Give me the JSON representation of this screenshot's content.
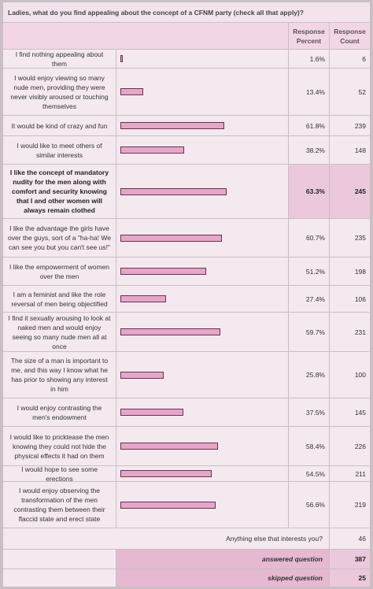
{
  "title": "Ladies, what do you find appealing about the concept of a CFNM party (check all that apply)?",
  "headers": [
    "Response Percent",
    "Response Count"
  ],
  "rows": [
    {
      "label": "I find nothing appealing about them",
      "percent": 1.6,
      "percent_label": "1.6%",
      "count": 6
    },
    {
      "label": "I would enjoy viewing so many nude men, providing they were never visibly aroused or touching themselves",
      "percent": 13.4,
      "percent_label": "13.4%",
      "count": 52
    },
    {
      "label": "It would be kind of crazy and fun",
      "percent": 61.8,
      "percent_label": "61.8%",
      "count": 239
    },
    {
      "label": "I would like to meet others of similar interests",
      "percent": 38.2,
      "percent_label": "38.2%",
      "count": 148
    },
    {
      "label": "I like the concept of mandatory nudity for the men along with comfort and security knowing that I and other women will always remain clothed",
      "percent": 63.3,
      "percent_label": "63.3%",
      "count": 245,
      "highlight": true
    },
    {
      "label": "I like the advantage the girls have over the guys, sort of a \"ha-ha! We can see you but you can't see us!\"",
      "percent": 60.7,
      "percent_label": "60.7%",
      "count": 235
    },
    {
      "label": "I like the empowerment of women over the men",
      "percent": 51.2,
      "percent_label": "51.2%",
      "count": 198
    },
    {
      "label": "I am a feminist and like the role reversal of men being objectified",
      "percent": 27.4,
      "percent_label": "27.4%",
      "count": 106
    },
    {
      "label": "I find it sexually arousing to look at naked men and would enjoy seeing so many nude men all at once",
      "percent": 59.7,
      "percent_label": "59.7%",
      "count": 231
    },
    {
      "label": "The size of a man is important to me, and this way I know what he has prior to showing any interest in him",
      "percent": 25.8,
      "percent_label": "25.8%",
      "count": 100
    },
    {
      "label": "I would enjoy contrasting the men's endowment",
      "percent": 37.5,
      "percent_label": "37.5%",
      "count": 145
    },
    {
      "label": "I would like to pricktease the men knowing they could not hide the physical effects it had on them",
      "percent": 58.4,
      "percent_label": "58.4%",
      "count": 226
    },
    {
      "label": "I would hope to see some erections",
      "percent": 54.5,
      "percent_label": "54.5%",
      "count": 211
    },
    {
      "label": "I would enjoy observing the transformation of the men contrasting them between their flaccid state and erect state",
      "percent": 56.6,
      "percent_label": "56.6%",
      "count": 219
    }
  ],
  "other": {
    "label": "Anything else that interests you?",
    "count": 46
  },
  "answered": {
    "label": "answered question",
    "count": 387
  },
  "skipped": {
    "label": "skipped question",
    "count": 25
  }
}
